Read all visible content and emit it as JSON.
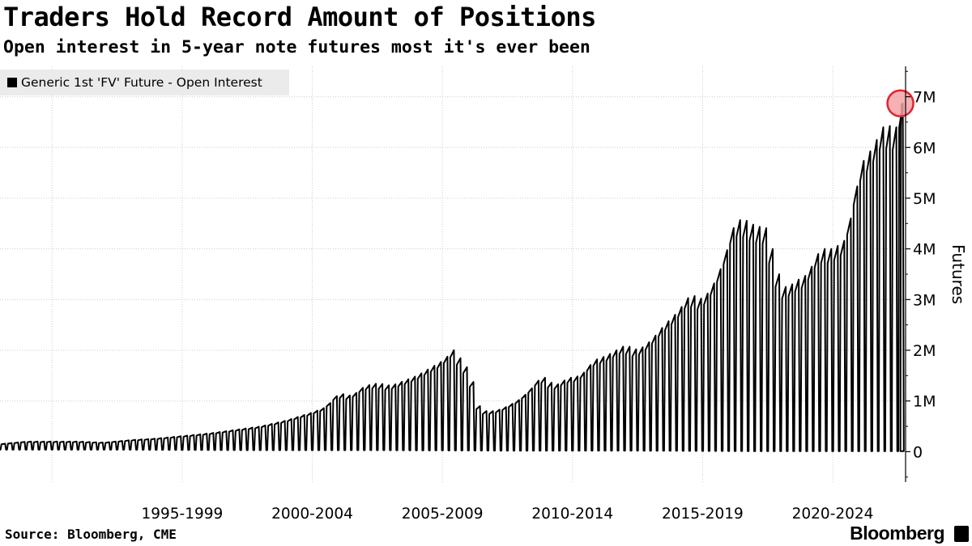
{
  "header": {
    "title": "Traders Hold Record Amount of Positions",
    "subtitle": "Open interest in 5-year note futures most it's ever been"
  },
  "legend": {
    "label": "Generic 1st 'FV' Future - Open Interest",
    "swatch_color": "#000000"
  },
  "footer": {
    "source": "Source: Bloomberg, CME",
    "brand": "Bloomberg",
    "brand_icon": "bloomberg-terminal-icon"
  },
  "colors": {
    "line": "#000000",
    "highlight_fill": "#f4a3a8",
    "highlight_stroke": "#e2232e",
    "gridline": "#cccccc",
    "legend_bg": "#ebebeb"
  },
  "chart_data": {
    "type": "line",
    "ylabel": "Futures",
    "x_range": [
      1990.5,
      2025.3
    ],
    "ylim": [
      -600000,
      7600000
    ],
    "y_ticks": [
      {
        "value": 0,
        "label": "0"
      },
      {
        "value": 1000000,
        "label": "1M"
      },
      {
        "value": 2000000,
        "label": "2M"
      },
      {
        "value": 3000000,
        "label": "3M"
      },
      {
        "value": 4000000,
        "label": "4M"
      },
      {
        "value": 5000000,
        "label": "5M"
      },
      {
        "value": 6000000,
        "label": "6M"
      },
      {
        "value": 7000000,
        "label": "7M"
      }
    ],
    "x_categories": [
      {
        "label": "1995-1999",
        "start": 1995,
        "end": 2000
      },
      {
        "label": "2000-2004",
        "start": 2000,
        "end": 2005
      },
      {
        "label": "2005-2009",
        "start": 2005,
        "end": 2010
      },
      {
        "label": "2010-2014",
        "start": 2010,
        "end": 2015
      },
      {
        "label": "2015-2019",
        "start": 2015,
        "end": 2020
      },
      {
        "label": "2020-2024",
        "start": 2020,
        "end": 2025
      }
    ],
    "x_gridlines": [
      1992.5,
      1997.5,
      2002.5,
      2007.5,
      2012.5,
      2017.5,
      2022.5
    ],
    "grid": true,
    "legend_position": "top-left",
    "rollover_cycle": "quarterly",
    "series": [
      {
        "name": "Generic 1st 'FV' Future - Open Interest",
        "peak_envelope": [
          [
            1990.5,
            150000
          ],
          [
            1991.5,
            200000
          ],
          [
            1992.5,
            200000
          ],
          [
            1993.5,
            200000
          ],
          [
            1994.5,
            180000
          ],
          [
            1995.5,
            230000
          ],
          [
            1996.5,
            260000
          ],
          [
            1997.5,
            310000
          ],
          [
            1998.5,
            360000
          ],
          [
            1999.5,
            430000
          ],
          [
            2000.5,
            500000
          ],
          [
            2001.5,
            620000
          ],
          [
            2002.5,
            780000
          ],
          [
            2003.0,
            880000
          ],
          [
            2003.5,
            1150000
          ],
          [
            2004.0,
            1100000
          ],
          [
            2004.5,
            1300000
          ],
          [
            2005.0,
            1350000
          ],
          [
            2005.5,
            1300000
          ],
          [
            2006.0,
            1400000
          ],
          [
            2006.5,
            1500000
          ],
          [
            2007.0,
            1650000
          ],
          [
            2007.5,
            1800000
          ],
          [
            2007.9,
            2000000
          ],
          [
            2008.3,
            1750000
          ],
          [
            2008.6,
            1500000
          ],
          [
            2008.8,
            1000000
          ],
          [
            2009.0,
            800000
          ],
          [
            2009.5,
            800000
          ],
          [
            2010.0,
            900000
          ],
          [
            2010.5,
            1050000
          ],
          [
            2011.0,
            1300000
          ],
          [
            2011.3,
            1500000
          ],
          [
            2011.8,
            1300000
          ],
          [
            2012.3,
            1450000
          ],
          [
            2012.8,
            1500000
          ],
          [
            2013.3,
            1800000
          ],
          [
            2013.8,
            1900000
          ],
          [
            2014.5,
            2100000
          ],
          [
            2015.0,
            2000000
          ],
          [
            2015.5,
            2200000
          ],
          [
            2016.0,
            2500000
          ],
          [
            2016.5,
            2750000
          ],
          [
            2017.0,
            3100000
          ],
          [
            2017.5,
            3000000
          ],
          [
            2018.0,
            3400000
          ],
          [
            2018.3,
            3800000
          ],
          [
            2018.7,
            4500000
          ],
          [
            2019.0,
            4600000
          ],
          [
            2019.5,
            4450000
          ],
          [
            2020.0,
            4400000
          ],
          [
            2020.3,
            3600000
          ],
          [
            2020.7,
            3200000
          ],
          [
            2021.0,
            3350000
          ],
          [
            2021.5,
            3500000
          ],
          [
            2022.0,
            4000000
          ],
          [
            2022.5,
            4000000
          ],
          [
            2023.0,
            4200000
          ],
          [
            2023.3,
            5000000
          ],
          [
            2023.6,
            5700000
          ],
          [
            2024.0,
            6000000
          ],
          [
            2024.5,
            6500000
          ],
          [
            2024.7,
            6400000
          ],
          [
            2025.0,
            6400000
          ],
          [
            2025.15,
            6870000
          ]
        ],
        "trough_envelope": [
          [
            1990.5,
            40000
          ],
          [
            1995.0,
            40000
          ],
          [
            2000.0,
            30000
          ],
          [
            2005.0,
            30000
          ],
          [
            2010.0,
            20000
          ],
          [
            2015.0,
            20000
          ],
          [
            2020.0,
            10000
          ],
          [
            2025.15,
            10000
          ]
        ],
        "last_value": {
          "x": 2025.15,
          "y": 6870000
        }
      }
    ],
    "annotations": [
      {
        "type": "circle-highlight",
        "x": 2025.1,
        "y": 6870000
      }
    ]
  }
}
